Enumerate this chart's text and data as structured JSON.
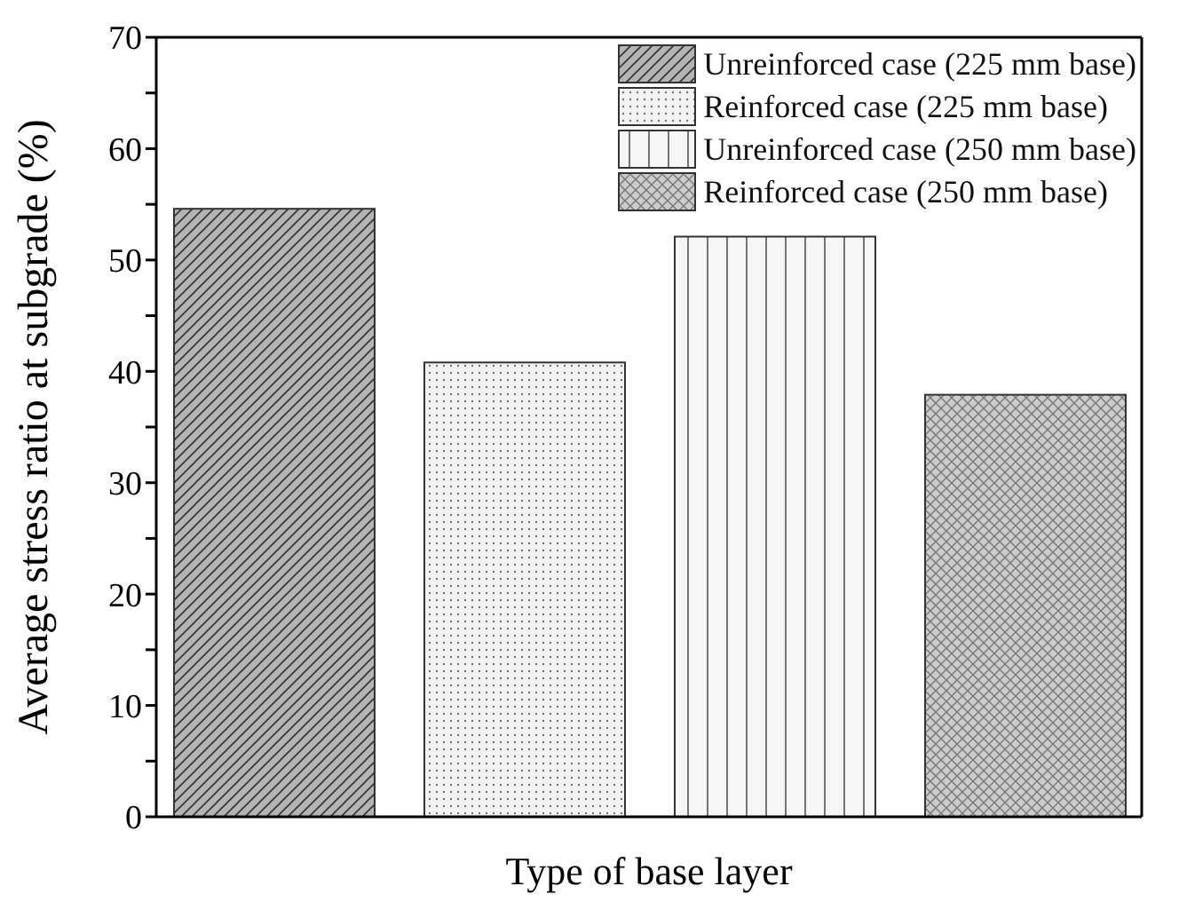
{
  "chart_data": {
    "type": "bar",
    "xlabel": "Type of base layer",
    "ylabel": "Average stress ratio at subgrade (%)",
    "categories": [
      null
    ],
    "series": [
      {
        "name": "Unreinforced case (225 mm base)",
        "color": "#b4b4b4",
        "values": [
          54.6
        ]
      },
      {
        "name": "Reinforced case (225 mm base)",
        "color": "#f2f2f2",
        "values": [
          40.8
        ]
      },
      {
        "name": "Unreinforced case (250 mm base)",
        "color": "#f6f6f6",
        "values": [
          52.1
        ]
      },
      {
        "name": "Reinforced case (250 mm base)",
        "color": "#cccccc",
        "values": [
          37.9
        ]
      }
    ],
    "ylim": [
      0,
      70
    ],
    "yticks": [
      0,
      {
        "value": 5,
        "label": null
      },
      10,
      {
        "value": 15,
        "label": null
      },
      20,
      {
        "value": 25,
        "label": null
      },
      30,
      {
        "value": 35,
        "label": null
      },
      40,
      {
        "value": 45,
        "label": null
      },
      50,
      {
        "value": 55,
        "label": null
      },
      60,
      {
        "value": 65,
        "label": null
      },
      70
    ],
    "grid": false,
    "legend": "top right"
  }
}
